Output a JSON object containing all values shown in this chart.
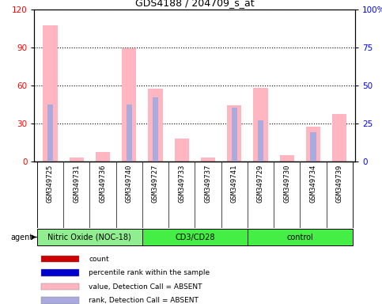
{
  "title": "GDS4188 / 204709_s_at",
  "samples": [
    "GSM349725",
    "GSM349731",
    "GSM349736",
    "GSM349740",
    "GSM349727",
    "GSM349733",
    "GSM349737",
    "GSM349741",
    "GSM349729",
    "GSM349730",
    "GSM349734",
    "GSM349739"
  ],
  "pink_bars": [
    107,
    3,
    7,
    89,
    57,
    18,
    3,
    44,
    58,
    5,
    27,
    37
  ],
  "blue_bars": [
    37,
    0,
    0,
    37,
    42,
    0,
    0,
    35,
    27,
    0,
    19,
    0
  ],
  "ylim_left": [
    0,
    120
  ],
  "ylim_right": [
    0,
    100
  ],
  "yticks_left": [
    0,
    30,
    60,
    90,
    120
  ],
  "yticks_right": [
    0,
    25,
    50,
    75,
    100
  ],
  "ytick_labels_right": [
    "0",
    "25",
    "50",
    "75",
    "100%"
  ],
  "group_labels": [
    "Nitric Oxide (NOC-18)",
    "CD3/CD28",
    "control"
  ],
  "group_starts": [
    0,
    4,
    8
  ],
  "group_ends": [
    4,
    8,
    12
  ],
  "group_colors": [
    "#90EE90",
    "#44EE44",
    "#44EE44"
  ],
  "pink_color": "#FFB6C1",
  "blue_color": "#AAAADD",
  "gray_color": "#D3D3D3",
  "legend_items": [
    {
      "color": "#CC0000",
      "label": "count"
    },
    {
      "color": "#0000CC",
      "label": "percentile rank within the sample"
    },
    {
      "color": "#FFB6C1",
      "label": "value, Detection Call = ABSENT"
    },
    {
      "color": "#AAAADD",
      "label": "rank, Detection Call = ABSENT"
    }
  ]
}
